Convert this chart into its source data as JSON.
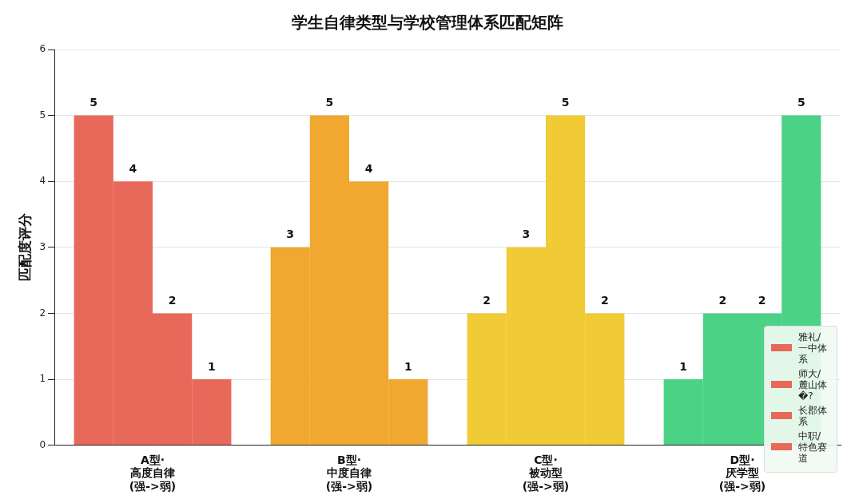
{
  "chart_data": {
    "type": "bar",
    "title": "学生自律类型与学校管理体系匹配矩阵",
    "ylabel": "匹配度评分",
    "categories": [
      "A型·\n高度自律\n(强->弱)",
      "B型·\n中度自律\n(强->弱)",
      "C型·\n被动型\n(强->弱)",
      "D型·\n厌学型\n(强->弱)"
    ],
    "series": [
      {
        "name": "雅礼/一中体系",
        "color": "#e8685a",
        "colors": [
          "#e8685a",
          "#f0a830",
          "#f0cb35",
          "#4cd286"
        ],
        "values": [
          5,
          3,
          2,
          1
        ]
      },
      {
        "name": "师大/麓山体�?",
        "color": "#e8685a",
        "colors": [
          "#e8685a",
          "#f0a830",
          "#f0cb35",
          "#4cd286"
        ],
        "values": [
          4,
          5,
          3,
          2
        ]
      },
      {
        "name": "长郡体系",
        "color": "#e8685a",
        "colors": [
          "#e8685a",
          "#f0a830",
          "#f0cb35",
          "#4cd286"
        ],
        "values": [
          2,
          4,
          5,
          2
        ]
      },
      {
        "name": "中职/特色赛道",
        "color": "#e8685a",
        "colors": [
          "#e8685a",
          "#f0a830",
          "#f0cb35",
          "#4cd286"
        ],
        "values": [
          1,
          1,
          2,
          5
        ]
      }
    ],
    "ylim": [
      0,
      6
    ],
    "yticks": [
      0,
      1,
      2,
      3,
      4,
      5,
      6
    ],
    "grid": "y",
    "legend": "bottom right",
    "data_labels": true
  }
}
